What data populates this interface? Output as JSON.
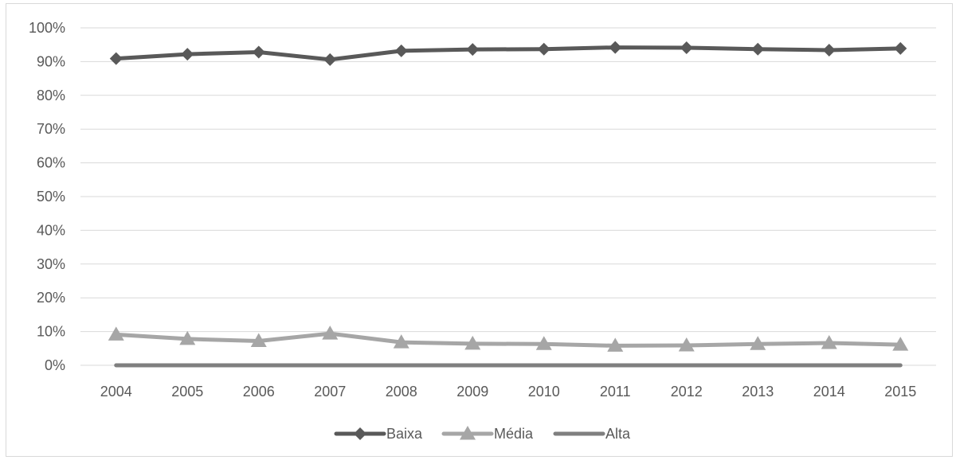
{
  "chart_data": {
    "type": "line",
    "title": "",
    "xlabel": "",
    "ylabel": "",
    "categories": [
      "2004",
      "2005",
      "2006",
      "2007",
      "2008",
      "2009",
      "2010",
      "2011",
      "2012",
      "2013",
      "2014",
      "2015"
    ],
    "ylim": [
      0,
      1
    ],
    "y_ticks": [
      0,
      0.1,
      0.2,
      0.3,
      0.4,
      0.5,
      0.6,
      0.7,
      0.8,
      0.9,
      1.0
    ],
    "y_tick_labels": [
      "0%",
      "10%",
      "20%",
      "30%",
      "40%",
      "50%",
      "60%",
      "70%",
      "80%",
      "90%",
      "100%"
    ],
    "grid": "horizontal",
    "legend_position": "bottom",
    "series": [
      {
        "name": "Baixa",
        "color": "#595959",
        "marker": "diamond",
        "values": [
          0.909,
          0.922,
          0.928,
          0.906,
          0.932,
          0.936,
          0.937,
          0.942,
          0.941,
          0.937,
          0.934,
          0.939
        ]
      },
      {
        "name": "Média",
        "color": "#a6a6a6",
        "marker": "triangle",
        "values": [
          0.091,
          0.078,
          0.072,
          0.094,
          0.068,
          0.064,
          0.063,
          0.058,
          0.059,
          0.063,
          0.066,
          0.061
        ]
      },
      {
        "name": "Alta",
        "color": "#7f7f7f",
        "marker": "none",
        "values": [
          0,
          0,
          0,
          0,
          0,
          0,
          0,
          0,
          0,
          0,
          0,
          0
        ]
      }
    ]
  }
}
